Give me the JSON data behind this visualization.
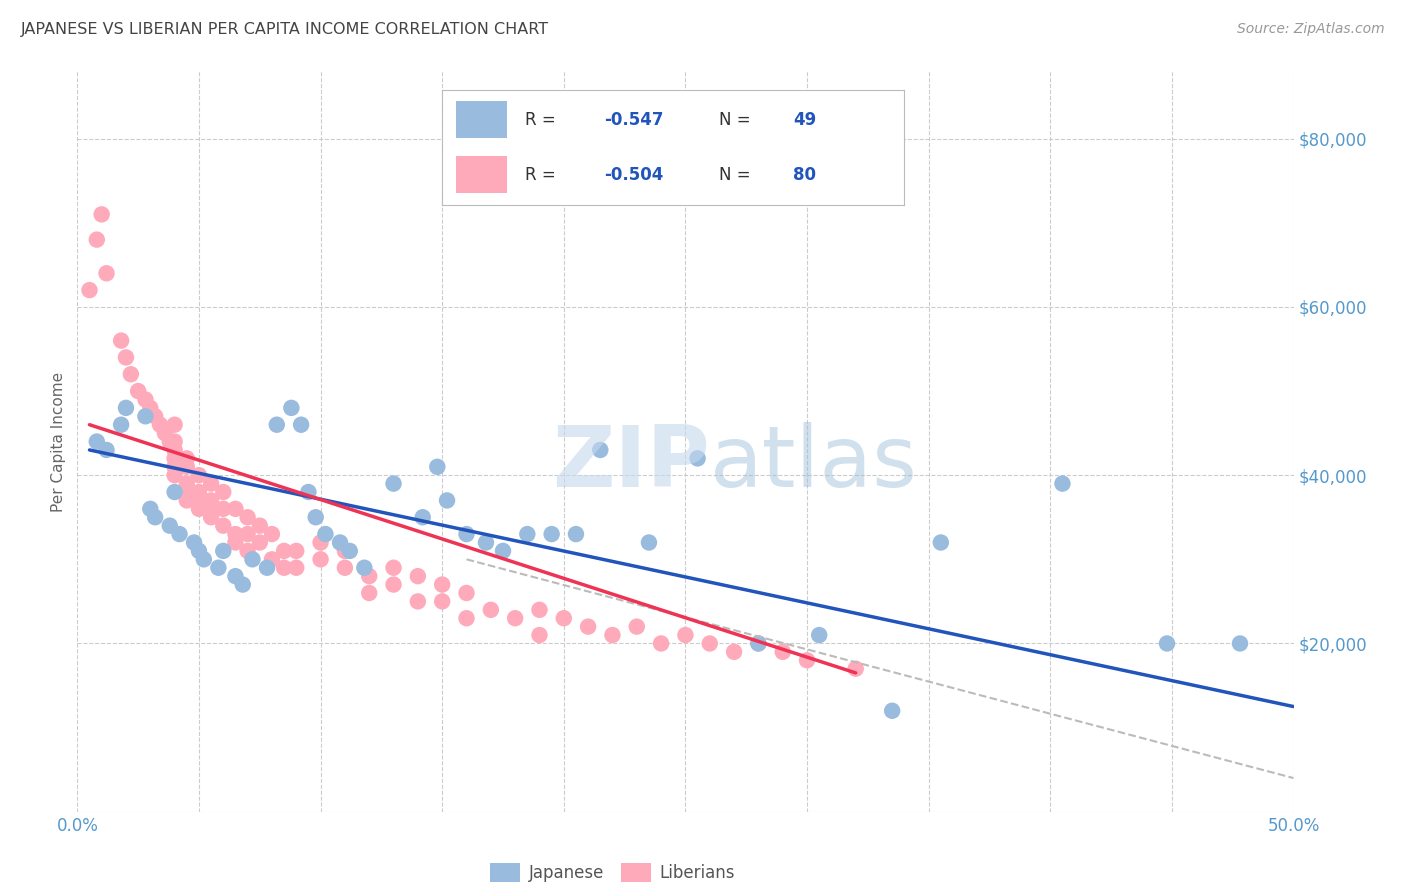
{
  "title": "JAPANESE VS LIBERIAN PER CAPITA INCOME CORRELATION CHART",
  "source": "Source: ZipAtlas.com",
  "ylabel": "Per Capita Income",
  "watermark_zip": "ZIP",
  "watermark_atlas": "atlas",
  "legend_label1": "Japanese",
  "legend_label2": "Liberians",
  "blue_color": "#99BBDD",
  "pink_color": "#FFAABB",
  "line_blue": "#2255BB",
  "line_pink": "#EE3355",
  "line_dashed": "#BBBBBB",
  "background": "#FFFFFF",
  "grid_color": "#CCCCCC",
  "y_ticks": [
    0,
    20000,
    40000,
    60000,
    80000
  ],
  "y_tick_labels": [
    "",
    "$20,000",
    "$40,000",
    "$60,000",
    "$80,000"
  ],
  "xlim": [
    0.0,
    0.5
  ],
  "ylim": [
    0,
    88000
  ],
  "title_color": "#444444",
  "source_color": "#999999",
  "tick_color": "#5599CC",
  "r_value_color": "#2255BB",
  "legend_text_color": "#333333",
  "japanese_points": [
    [
      0.008,
      44000
    ],
    [
      0.012,
      43000
    ],
    [
      0.018,
      46000
    ],
    [
      0.02,
      48000
    ],
    [
      0.028,
      47000
    ],
    [
      0.03,
      36000
    ],
    [
      0.032,
      35000
    ],
    [
      0.038,
      34000
    ],
    [
      0.04,
      38000
    ],
    [
      0.042,
      33000
    ],
    [
      0.048,
      32000
    ],
    [
      0.05,
      31000
    ],
    [
      0.052,
      30000
    ],
    [
      0.058,
      29000
    ],
    [
      0.06,
      31000
    ],
    [
      0.065,
      28000
    ],
    [
      0.068,
      27000
    ],
    [
      0.072,
      30000
    ],
    [
      0.078,
      29000
    ],
    [
      0.082,
      46000
    ],
    [
      0.088,
      48000
    ],
    [
      0.092,
      46000
    ],
    [
      0.095,
      38000
    ],
    [
      0.098,
      35000
    ],
    [
      0.102,
      33000
    ],
    [
      0.108,
      32000
    ],
    [
      0.112,
      31000
    ],
    [
      0.118,
      29000
    ],
    [
      0.13,
      39000
    ],
    [
      0.142,
      35000
    ],
    [
      0.148,
      41000
    ],
    [
      0.152,
      37000
    ],
    [
      0.16,
      33000
    ],
    [
      0.168,
      32000
    ],
    [
      0.175,
      31000
    ],
    [
      0.185,
      33000
    ],
    [
      0.195,
      33000
    ],
    [
      0.205,
      33000
    ],
    [
      0.215,
      43000
    ],
    [
      0.235,
      32000
    ],
    [
      0.255,
      42000
    ],
    [
      0.28,
      20000
    ],
    [
      0.305,
      21000
    ],
    [
      0.335,
      12000
    ],
    [
      0.355,
      32000
    ],
    [
      0.405,
      39000
    ],
    [
      0.448,
      20000
    ],
    [
      0.478,
      20000
    ]
  ],
  "liberian_points": [
    [
      0.005,
      62000
    ],
    [
      0.008,
      68000
    ],
    [
      0.01,
      71000
    ],
    [
      0.012,
      64000
    ],
    [
      0.018,
      56000
    ],
    [
      0.02,
      54000
    ],
    [
      0.022,
      52000
    ],
    [
      0.025,
      50000
    ],
    [
      0.028,
      49000
    ],
    [
      0.03,
      48000
    ],
    [
      0.032,
      47000
    ],
    [
      0.034,
      46000
    ],
    [
      0.036,
      45000
    ],
    [
      0.038,
      44000
    ],
    [
      0.04,
      46000
    ],
    [
      0.04,
      44000
    ],
    [
      0.04,
      43000
    ],
    [
      0.04,
      42000
    ],
    [
      0.04,
      41000
    ],
    [
      0.04,
      40000
    ],
    [
      0.045,
      42000
    ],
    [
      0.045,
      41000
    ],
    [
      0.045,
      39000
    ],
    [
      0.045,
      38000
    ],
    [
      0.045,
      37000
    ],
    [
      0.05,
      40000
    ],
    [
      0.05,
      38000
    ],
    [
      0.05,
      37000
    ],
    [
      0.05,
      36000
    ],
    [
      0.055,
      39000
    ],
    [
      0.055,
      37000
    ],
    [
      0.055,
      36000
    ],
    [
      0.055,
      35000
    ],
    [
      0.06,
      38000
    ],
    [
      0.06,
      36000
    ],
    [
      0.06,
      34000
    ],
    [
      0.065,
      36000
    ],
    [
      0.065,
      33000
    ],
    [
      0.065,
      32000
    ],
    [
      0.07,
      35000
    ],
    [
      0.07,
      33000
    ],
    [
      0.07,
      31000
    ],
    [
      0.075,
      34000
    ],
    [
      0.075,
      32000
    ],
    [
      0.08,
      33000
    ],
    [
      0.08,
      30000
    ],
    [
      0.085,
      31000
    ],
    [
      0.085,
      29000
    ],
    [
      0.09,
      31000
    ],
    [
      0.09,
      29000
    ],
    [
      0.1,
      32000
    ],
    [
      0.1,
      30000
    ],
    [
      0.11,
      31000
    ],
    [
      0.11,
      29000
    ],
    [
      0.12,
      28000
    ],
    [
      0.12,
      26000
    ],
    [
      0.13,
      29000
    ],
    [
      0.13,
      27000
    ],
    [
      0.14,
      28000
    ],
    [
      0.14,
      25000
    ],
    [
      0.15,
      27000
    ],
    [
      0.15,
      25000
    ],
    [
      0.16,
      26000
    ],
    [
      0.16,
      23000
    ],
    [
      0.17,
      24000
    ],
    [
      0.18,
      23000
    ],
    [
      0.19,
      24000
    ],
    [
      0.19,
      21000
    ],
    [
      0.2,
      23000
    ],
    [
      0.21,
      22000
    ],
    [
      0.22,
      21000
    ],
    [
      0.23,
      22000
    ],
    [
      0.24,
      20000
    ],
    [
      0.25,
      21000
    ],
    [
      0.26,
      20000
    ],
    [
      0.27,
      19000
    ],
    [
      0.28,
      20000
    ],
    [
      0.29,
      19000
    ],
    [
      0.3,
      18000
    ],
    [
      0.32,
      17000
    ]
  ],
  "blue_trend_x": [
    0.005,
    0.5
  ],
  "blue_trend_y": [
    43000,
    12500
  ],
  "pink_trend_x": [
    0.005,
    0.32
  ],
  "pink_trend_y": [
    46000,
    16500
  ],
  "dashed_trend_x": [
    0.16,
    0.5
  ],
  "dashed_trend_y": [
    30000,
    4000
  ]
}
